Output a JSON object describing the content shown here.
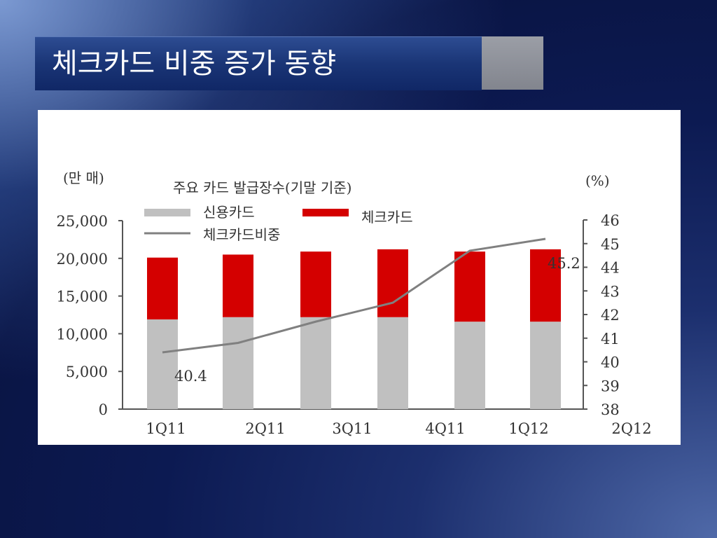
{
  "slide": {
    "title": "체크카드 비중 증가 동향"
  },
  "chart_data": {
    "type": "bar",
    "title": "주요 카드 발급장수(기말 기준)",
    "ylabel_left": "(만 매)",
    "ylabel_right": "(%)",
    "categories": [
      "1Q11",
      "2Q11",
      "3Q11",
      "4Q11",
      "1Q12",
      "2Q12"
    ],
    "stacked": true,
    "series": [
      {
        "name": "신용카드",
        "kind": "bar",
        "axis": "left",
        "color": "#c0c0c0",
        "values": [
          11900,
          12200,
          12200,
          12200,
          11600,
          11600
        ]
      },
      {
        "name": "체크카드",
        "kind": "bar",
        "axis": "left",
        "color": "#d40000",
        "values": [
          8200,
          8300,
          8700,
          9000,
          9300,
          9600
        ]
      },
      {
        "name": "체크카드비중",
        "kind": "line",
        "axis": "right",
        "color": "#808080",
        "values": [
          40.4,
          40.8,
          41.7,
          42.5,
          44.7,
          45.2
        ]
      }
    ],
    "data_labels": [
      "40.4",
      "45.2"
    ],
    "ylim_left": [
      0,
      25000
    ],
    "yticks_left": [
      "0",
      "5,000",
      "10,000",
      "15,000",
      "20,000",
      "25,000"
    ],
    "ylim_right": [
      38,
      46
    ],
    "yticks_right": [
      "38",
      "39",
      "40",
      "41",
      "42",
      "43",
      "44",
      "45",
      "46"
    ],
    "legend_position": "top-left",
    "grid": false
  }
}
